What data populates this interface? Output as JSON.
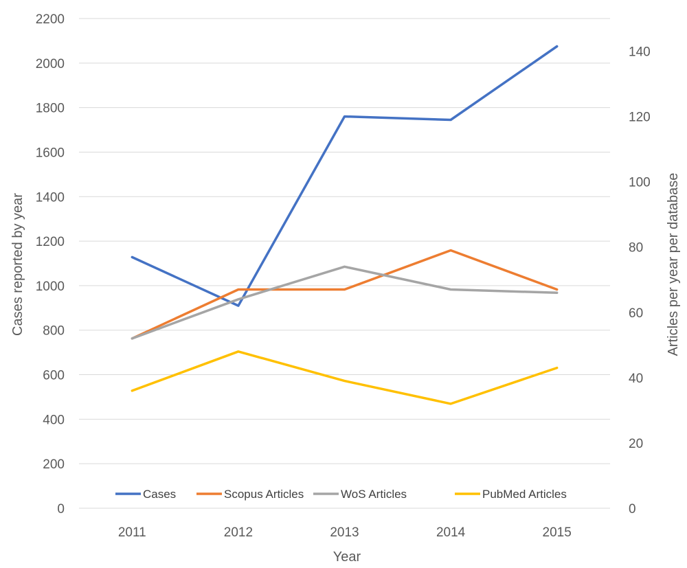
{
  "chart_data": {
    "type": "line",
    "categories": [
      "2011",
      "2012",
      "2013",
      "2014",
      "2015"
    ],
    "xlabel": "Year",
    "ylabel": "Cases reported by year",
    "y2label": "Articles per year per database",
    "ylim": [
      0,
      2200
    ],
    "y2lim": [
      0,
      150
    ],
    "yticks": [
      "0",
      "200",
      "400",
      "600",
      "800",
      "1000",
      "1200",
      "1400",
      "1600",
      "1800",
      "2000",
      "2200"
    ],
    "y2ticks": [
      "0",
      "20",
      "40",
      "60",
      "80",
      "100",
      "120",
      "140"
    ],
    "grid": true,
    "legend_position": "bottom",
    "series": [
      {
        "name": "Cases",
        "axis": "left",
        "color": "#4472C4",
        "values": [
          1128,
          910,
          1760,
          1745,
          2075
        ]
      },
      {
        "name": "Scopus Articles",
        "axis": "right",
        "color": "#ED7D31",
        "values": [
          52,
          67,
          67,
          79,
          67
        ]
      },
      {
        "name": "WoS Articles",
        "axis": "right",
        "color": "#A5A5A5",
        "values": [
          52,
          64,
          74,
          67,
          66
        ]
      },
      {
        "name": "PubMed Articles",
        "axis": "right",
        "color": "#FFC000",
        "values": [
          36,
          48,
          39,
          32,
          43
        ]
      }
    ]
  }
}
